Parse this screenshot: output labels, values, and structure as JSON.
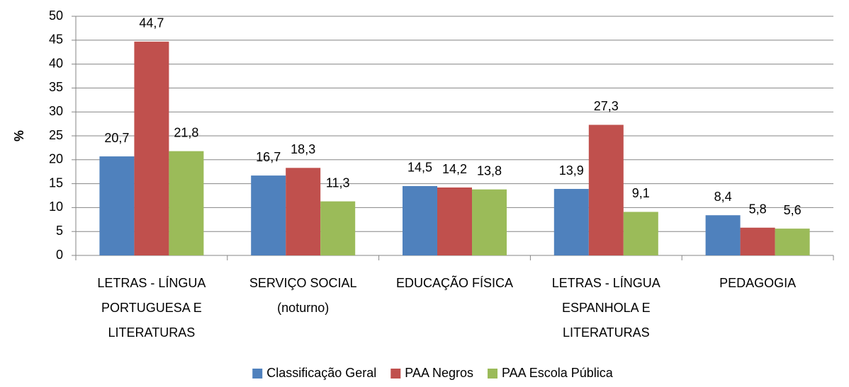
{
  "chart_data": {
    "type": "bar",
    "y_label": "%",
    "categories": [
      [
        "LETRAS - LÍNGUA",
        "PORTUGUESA E",
        "LITERATURAS"
      ],
      [
        "SERVIÇO SOCIAL",
        "(noturno)"
      ],
      [
        "EDUCAÇÃO FÍSICA"
      ],
      [
        "LETRAS - LÍNGUA",
        "ESPANHOLA E",
        "LITERATURAS"
      ],
      [
        "PEDAGOGIA"
      ]
    ],
    "series": [
      {
        "name": "Classificação Geral",
        "color": "#4f81bd",
        "values": [
          20.7,
          16.7,
          14.5,
          13.9,
          8.4
        ],
        "value_labels": [
          "20,7",
          "16,7",
          "14,5",
          "13,9",
          "8,4"
        ]
      },
      {
        "name": "PAA Negros",
        "color": "#c0504d",
        "values": [
          44.7,
          18.3,
          14.2,
          27.3,
          5.8
        ],
        "value_labels": [
          "44,7",
          "18,3",
          "14,2",
          "27,3",
          "5,8"
        ]
      },
      {
        "name": "PAA Escola Pública",
        "color": "#9bbb59",
        "values": [
          21.8,
          11.3,
          13.8,
          9.1,
          5.6
        ],
        "value_labels": [
          "21,8",
          "11,3",
          "13,8",
          "9,1",
          "5,6"
        ]
      }
    ],
    "ylim": [
      0,
      50
    ],
    "yticks": [
      0,
      5,
      10,
      15,
      20,
      25,
      30,
      35,
      40,
      45,
      50
    ],
    "grid": true,
    "legend": "bottom"
  }
}
